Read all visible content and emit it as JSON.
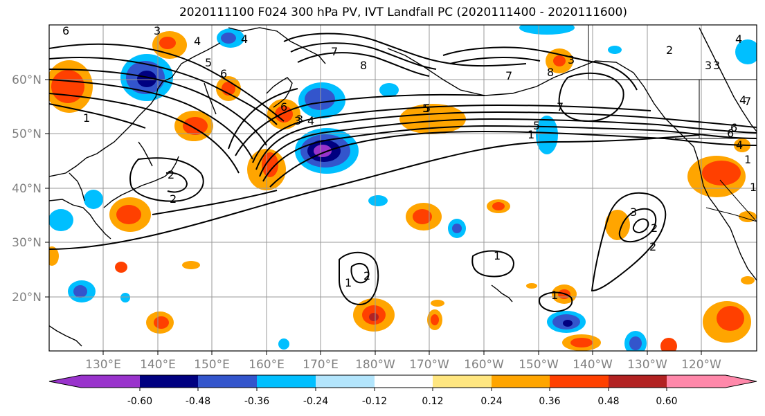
{
  "title": "2020111100 F024 300 hPa PV, IVT Landfall PC (2020111400 - 2020111600)",
  "lat_labels": [
    "60°N",
    "50°N",
    "40°N",
    "30°N",
    "20°N"
  ],
  "lon_labels": [
    "130°E",
    "140°E",
    "150°E",
    "160°E",
    "170°E",
    "180°W",
    "170°W",
    "160°W",
    "150°W",
    "140°W",
    "130°W",
    "120°W"
  ],
  "colorbar": {
    "colors": [
      "#9933cc",
      "#000080",
      "#3355cc",
      "#00bfff",
      "#b3e5fc",
      "#ffffff",
      "#ffffff",
      "#ffe680",
      "#ffa500",
      "#ff4000",
      "#b22222",
      "#ff88aa"
    ],
    "tick_labels": [
      "-0.60",
      "-0.48",
      "-0.36",
      "-0.24",
      "-0.12",
      "0.12",
      "0.24",
      "0.36",
      "0.48",
      "0.60"
    ]
  },
  "contour_labels": [
    "6",
    "3",
    "4",
    "4",
    "5",
    "6",
    "7",
    "8",
    "3",
    "6",
    "7",
    "8",
    "5",
    "3",
    "4",
    "1",
    "2",
    "2",
    "1",
    "7",
    "3",
    "2",
    "3",
    "6",
    "4",
    "3",
    "4",
    "1",
    "2",
    "1",
    "2",
    "1",
    "3",
    "2",
    "1",
    "4",
    "5",
    "5",
    "6",
    "7",
    "1"
  ]
}
